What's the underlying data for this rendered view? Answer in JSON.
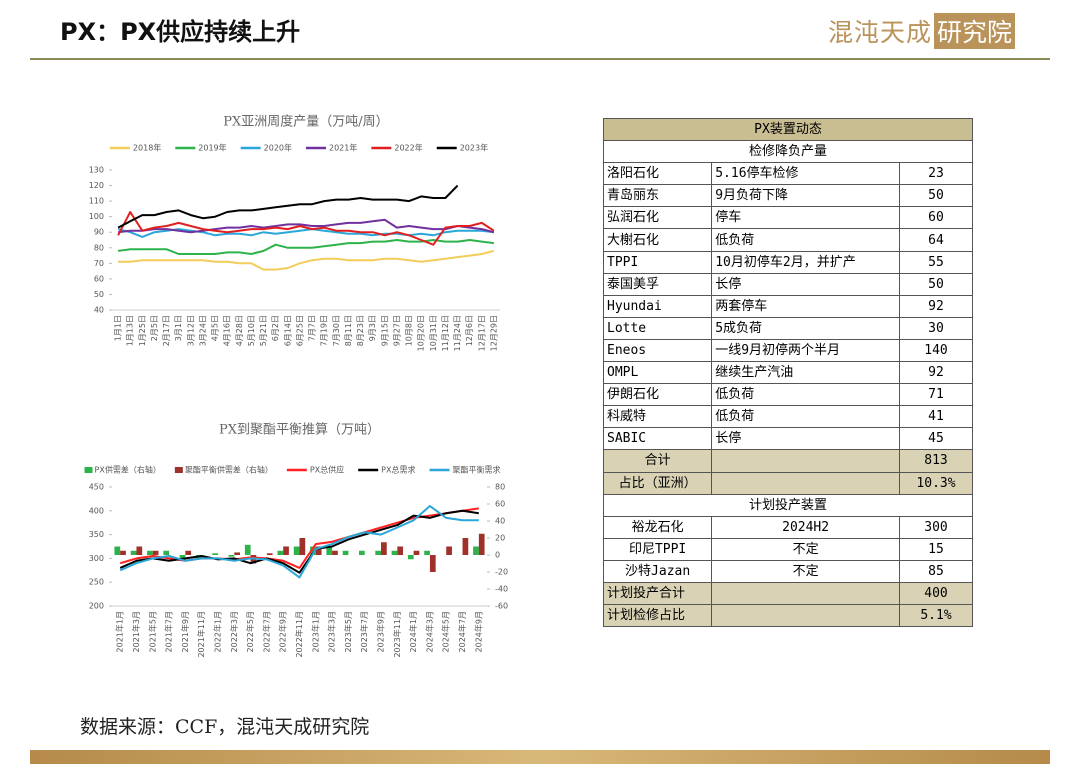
{
  "header": {
    "title": "PX：PX供应持续上升",
    "logo_left": "混沌天成",
    "logo_right": "研究院"
  },
  "chart_data": [
    {
      "type": "line",
      "title": "PX亚洲周度产量（万吨/周）",
      "categories": [
        "1月1日",
        "1月13日",
        "1月25日",
        "2月5日",
        "2月17日",
        "3月1日",
        "3月12日",
        "3月24日",
        "4月5日",
        "4月16日",
        "4月28日",
        "5月10日",
        "5月21日",
        "6月2日",
        "6月14日",
        "6月25日",
        "7月7日",
        "7月19日",
        "7月30日",
        "8月11日",
        "8月23日",
        "9月3日",
        "9月15日",
        "9月27日",
        "10月8日",
        "10月20日",
        "10月31日",
        "11月12日",
        "11月24日",
        "12月6日",
        "12月17日",
        "12月29日"
      ],
      "series": [
        {
          "name": "2018年",
          "color": "#f2cd5c",
          "values": [
            71,
            71,
            72,
            72,
            72,
            72,
            72,
            72,
            71,
            71,
            70,
            70,
            66,
            66,
            67,
            70,
            72,
            73,
            73,
            72,
            72,
            72,
            73,
            73,
            72,
            71,
            72,
            73,
            74,
            75,
            76,
            78
          ]
        },
        {
          "name": "2019年",
          "color": "#2db34a",
          "values": [
            78,
            79,
            79,
            79,
            79,
            76,
            76,
            76,
            76,
            77,
            77,
            76,
            78,
            82,
            80,
            80,
            80,
            81,
            82,
            83,
            83,
            84,
            84,
            85,
            84,
            84,
            85,
            84,
            84,
            85,
            84,
            83
          ]
        },
        {
          "name": "2020年",
          "color": "#2aa6d8",
          "values": [
            92,
            90,
            87,
            90,
            91,
            92,
            91,
            90,
            88,
            89,
            89,
            88,
            90,
            89,
            90,
            91,
            92,
            91,
            90,
            89,
            89,
            88,
            89,
            89,
            88,
            89,
            88,
            90,
            91,
            91,
            91,
            90
          ]
        },
        {
          "name": "2021年",
          "color": "#7030a0",
          "values": [
            90,
            91,
            91,
            92,
            92,
            91,
            90,
            91,
            92,
            93,
            93,
            94,
            93,
            94,
            95,
            95,
            94,
            94,
            95,
            96,
            96,
            97,
            98,
            93,
            94,
            93,
            92,
            92,
            94,
            93,
            92,
            90
          ]
        },
        {
          "name": "2022年",
          "color": "#e02020",
          "values": [
            88,
            103,
            91,
            93,
            94,
            96,
            94,
            92,
            91,
            90,
            91,
            92,
            92,
            93,
            92,
            94,
            92,
            93,
            91,
            91,
            90,
            90,
            88,
            90,
            88,
            85,
            82,
            93,
            94,
            94,
            96,
            91
          ]
        },
        {
          "name": "2023年",
          "color": "#000000",
          "values": [
            93,
            97,
            101,
            101,
            103,
            104,
            101,
            99,
            100,
            103,
            104,
            104,
            105,
            106,
            107,
            108,
            108,
            110,
            111,
            111,
            112,
            111,
            111,
            111,
            110,
            113,
            112,
            112,
            120,
            null,
            null,
            null
          ]
        }
      ],
      "ylim": [
        40,
        130
      ],
      "yticks": [
        40,
        50,
        60,
        70,
        80,
        90,
        100,
        110,
        120,
        130
      ]
    },
    {
      "type": "combo",
      "title": "PX到聚酯平衡推算（万吨）",
      "categories": [
        "2021年1月",
        "2021年3月",
        "2021年5月",
        "2021年7月",
        "2021年9月",
        "2021年11月",
        "2022年1月",
        "2022年3月",
        "2022年5月",
        "2022年7月",
        "2022年9月",
        "2022年11月",
        "2023年1月",
        "2023年3月",
        "2023年5月",
        "2023年7月",
        "2023年9月",
        "2023年11月",
        "2024年1月",
        "2024年3月",
        "2024年5月",
        "2024年7月",
        "2024年9月"
      ],
      "series": [
        {
          "name": "PX供需差（右轴）",
          "color": "#2db34a",
          "kind": "bar",
          "axis": "y2",
          "values": [
            10,
            5,
            5,
            5,
            -5,
            -5,
            2,
            -2,
            12,
            0,
            5,
            10,
            10,
            10,
            5,
            5,
            5,
            5,
            -5,
            5,
            0,
            0,
            10
          ]
        },
        {
          "name": "聚酯平衡供需差（右轴）",
          "color": "#a0302a",
          "kind": "bar",
          "axis": "y2",
          "values": [
            5,
            10,
            5,
            0,
            5,
            0,
            0,
            3,
            -10,
            2,
            10,
            20,
            10,
            5,
            0,
            0,
            15,
            10,
            5,
            -20,
            10,
            20,
            25
          ]
        },
        {
          "name": "PX总供应",
          "color": "#ff2020",
          "kind": "line",
          "values": [
            290,
            300,
            305,
            300,
            295,
            300,
            300,
            298,
            302,
            300,
            295,
            280,
            330,
            335,
            345,
            355,
            365,
            375,
            385,
            390,
            395,
            400,
            405
          ]
        },
        {
          "name": "PX总需求",
          "color": "#000000",
          "kind": "line",
          "values": [
            280,
            295,
            300,
            295,
            300,
            305,
            298,
            300,
            290,
            300,
            290,
            270,
            320,
            325,
            340,
            350,
            360,
            370,
            390,
            385,
            395,
            400,
            395
          ]
        },
        {
          "name": "聚酯平衡需求",
          "color": "#2aa6d8",
          "kind": "line",
          "values": [
            275,
            290,
            300,
            305,
            295,
            300,
            300,
            295,
            300,
            298,
            285,
            260,
            320,
            330,
            345,
            355,
            350,
            365,
            380,
            410,
            385,
            380,
            380
          ]
        }
      ],
      "ylim": [
        200,
        450
      ],
      "yticks": [
        200,
        250,
        300,
        350,
        400,
        450
      ],
      "y2lim": [
        -60,
        80
      ],
      "y2ticks": [
        -60,
        -40,
        -20,
        0,
        20,
        40,
        60,
        80
      ]
    }
  ],
  "table": {
    "title": "PX装置动态",
    "section1": "检修降负产量",
    "rows": [
      [
        "洛阳石化",
        "5.16停车检修",
        23
      ],
      [
        "青岛丽东",
        "9月负荷下降",
        50
      ],
      [
        "弘润石化",
        "停车",
        60
      ],
      [
        "大榭石化",
        "低负荷",
        64
      ],
      [
        "TPPI",
        "10月初停车2月，并扩产",
        55
      ],
      [
        "泰国美孚",
        "长停",
        50
      ],
      [
        "Hyundai",
        "两套停车",
        92
      ],
      [
        "Lotte",
        "5成负荷",
        30
      ],
      [
        "Eneos",
        "一线9月初停两个半月",
        140
      ],
      [
        "OMPL",
        "继续生产汽油",
        92
      ],
      [
        "伊朗石化",
        "低负荷",
        71
      ],
      [
        "科威特",
        "低负荷",
        41
      ],
      [
        "SABIC",
        "长停",
        45
      ]
    ],
    "total": [
      "合计",
      813
    ],
    "share": [
      "占比（亚洲）",
      "10.3%"
    ],
    "section2": "计划投产装置",
    "plan_rows": [
      [
        "裕龙石化",
        "2024H2",
        300
      ],
      [
        "印尼TPPI",
        "不定",
        15
      ],
      [
        "沙特Jazan",
        "不定",
        85
      ]
    ],
    "plan_total": [
      "计划投产合计",
      400
    ],
    "plan_share": [
      "计划检修占比",
      "5.1%"
    ]
  },
  "source": "数据来源：CCF，混沌天成研究院"
}
